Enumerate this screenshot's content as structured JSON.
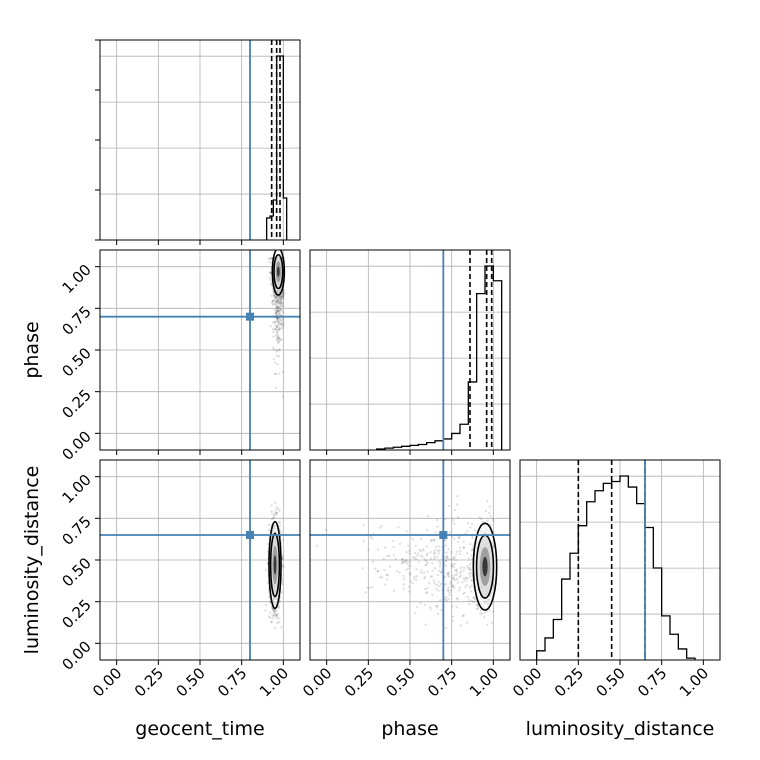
{
  "chart_data": {
    "type": "corner",
    "parameters": [
      {
        "name": "geocent_time",
        "label": "geocent_time",
        "truth": 0.8,
        "quantiles": [
          0.93,
          0.96,
          0.98
        ]
      },
      {
        "name": "phase",
        "label": "phase",
        "truth": 0.7,
        "quantiles": [
          0.86,
          0.96,
          0.99
        ]
      },
      {
        "name": "luminosity_distance",
        "label": "luminosity_distance",
        "truth": 0.65,
        "quantiles": [
          0.25,
          0.45,
          0.65
        ]
      }
    ],
    "range": [
      -0.1,
      1.1
    ],
    "tick_values": [
      0.0,
      0.25,
      0.5,
      0.75,
      1.0
    ],
    "tick_labels": [
      "0.00",
      "0.25",
      "0.50",
      "0.75",
      "1.00"
    ],
    "truth_color": "#4682b4",
    "grid": true,
    "histograms": {
      "geocent_time": {
        "bin_edges": [
          0.9,
          0.92,
          0.94,
          0.96,
          0.98,
          1.0,
          1.02
        ],
        "counts": [
          0.11,
          0.12,
          0.2,
          0.92,
          0.92,
          0.21
        ]
      },
      "phase": {
        "bin_edges": [
          0.3,
          0.35,
          0.4,
          0.45,
          0.5,
          0.55,
          0.6,
          0.65,
          0.7,
          0.75,
          0.8,
          0.85,
          0.9,
          0.95,
          1.0,
          1.05
        ],
        "counts": [
          0.005,
          0.01,
          0.015,
          0.02,
          0.025,
          0.03,
          0.04,
          0.05,
          0.06,
          0.09,
          0.14,
          0.37,
          0.85,
          1.0,
          0.92
        ]
      },
      "luminosity_distance": {
        "bin_edges": [
          0.0,
          0.05,
          0.1,
          0.15,
          0.2,
          0.25,
          0.3,
          0.35,
          0.4,
          0.45,
          0.5,
          0.55,
          0.6,
          0.65,
          0.7,
          0.75,
          0.8,
          0.85,
          0.9,
          0.95
        ],
        "counts": [
          0.05,
          0.12,
          0.22,
          0.44,
          0.58,
          0.73,
          0.86,
          0.92,
          0.96,
          0.97,
          1.0,
          0.94,
          0.85,
          0.72,
          0.5,
          0.24,
          0.14,
          0.06,
          0.01
        ]
      }
    },
    "panels_2d": [
      {
        "x": "geocent_time",
        "y": "phase",
        "peak": [
          0.97,
          0.97
        ]
      },
      {
        "x": "geocent_time",
        "y": "luminosity_distance",
        "peak": [
          0.95,
          0.47
        ]
      },
      {
        "x": "phase",
        "y": "luminosity_distance",
        "peak": [
          0.95,
          0.46
        ]
      }
    ]
  }
}
